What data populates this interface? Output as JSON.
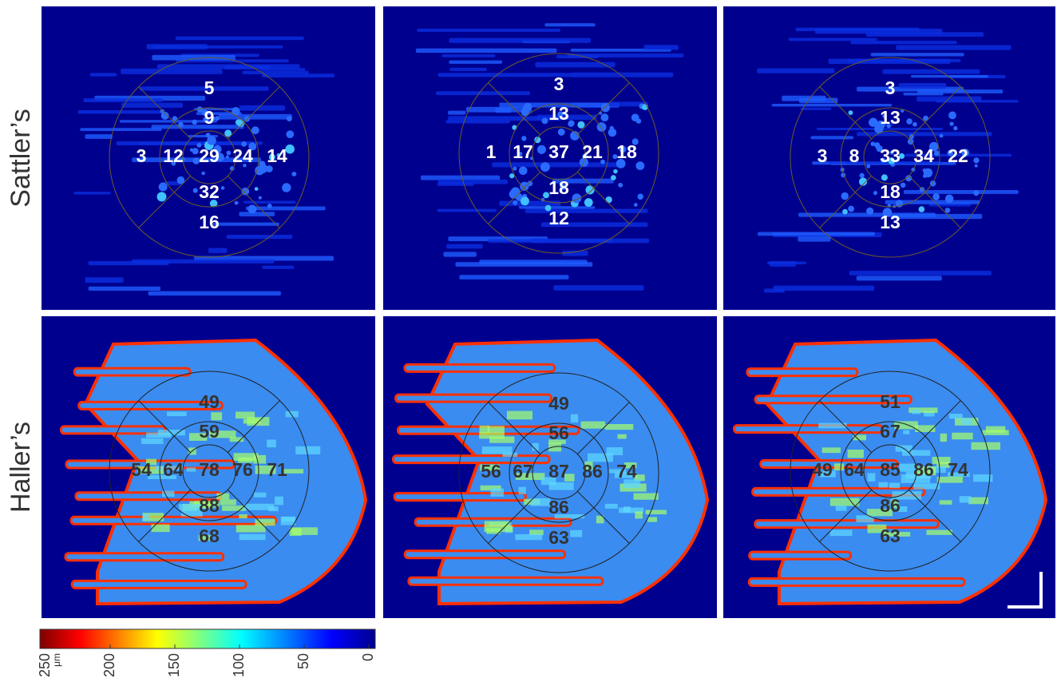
{
  "rows": [
    {
      "label": "Sattler’s",
      "panels": [
        {
          "values": [
            5,
            9,
            3,
            12,
            29,
            24,
            14,
            32,
            16
          ]
        },
        {
          "values": [
            3,
            13,
            1,
            17,
            37,
            21,
            18,
            18,
            12
          ]
        },
        {
          "values": [
            3,
            13,
            3,
            8,
            33,
            34,
            22,
            18,
            13
          ]
        }
      ]
    },
    {
      "label": "Haller’s",
      "panels": [
        {
          "values": [
            49,
            59,
            54,
            64,
            78,
            76,
            71,
            88,
            68
          ]
        },
        {
          "values": [
            49,
            56,
            56,
            67,
            87,
            86,
            74,
            86,
            63
          ]
        },
        {
          "values": [
            51,
            67,
            49,
            64,
            85,
            86,
            74,
            86,
            63
          ]
        }
      ]
    }
  ],
  "colorbar": {
    "unit": "μm",
    "ticks": [
      250,
      200,
      150,
      100,
      50,
      0
    ]
  }
}
